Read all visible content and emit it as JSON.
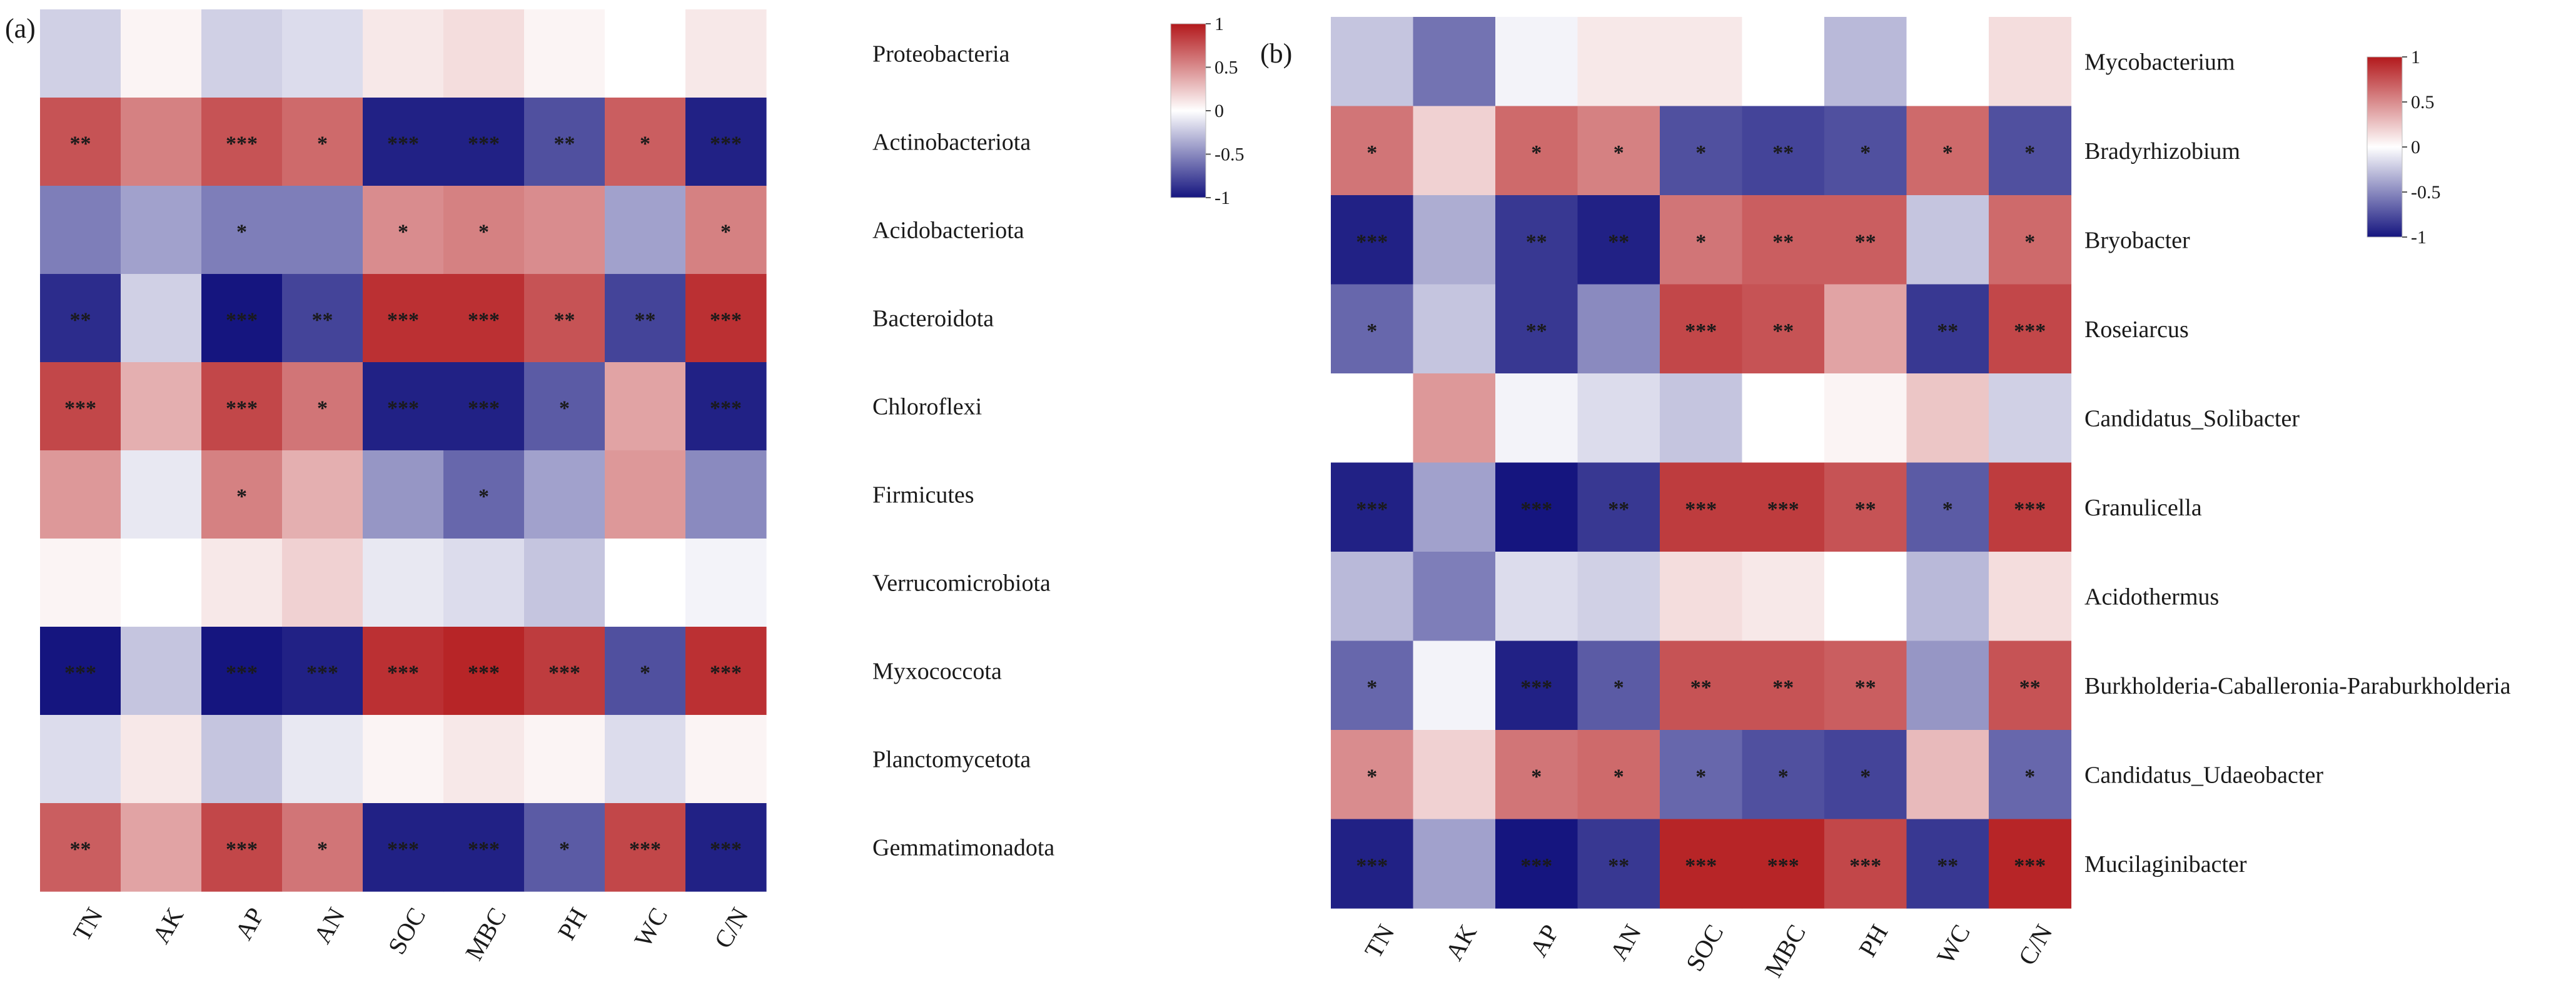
{
  "chart_data": [
    {
      "type": "heatmap",
      "panel_label": "(a)",
      "columns": [
        "TN",
        "AK",
        "AP",
        "AN",
        "SOC",
        "MBC",
        "PH",
        "WC",
        "C/N"
      ],
      "rows": [
        "Proteobacteria",
        "Actinobacteriota",
        "Acidobacteriota",
        "Bacteroidota",
        "Chloroflexi",
        "Firmicutes",
        "Verrucomicrobiota",
        "Myxococcota",
        "Planctomycetota",
        "Gemmatimonadota"
      ],
      "values": [
        [
          -0.2,
          0.05,
          -0.2,
          -0.15,
          0.1,
          0.15,
          0.05,
          0.0,
          0.1
        ],
        [
          0.75,
          0.55,
          0.75,
          0.65,
          -0.95,
          -0.95,
          -0.75,
          0.7,
          -0.95
        ],
        [
          -0.55,
          -0.4,
          -0.55,
          -0.55,
          0.5,
          0.55,
          0.5,
          -0.4,
          0.55
        ],
        [
          -0.9,
          -0.2,
          -1.0,
          -0.8,
          0.9,
          0.9,
          0.75,
          -0.8,
          0.9
        ],
        [
          0.8,
          0.35,
          0.8,
          0.6,
          -0.95,
          -0.95,
          -0.7,
          0.4,
          -0.95
        ],
        [
          0.45,
          -0.1,
          0.55,
          0.35,
          -0.45,
          -0.65,
          -0.4,
          0.45,
          -0.5
        ],
        [
          0.05,
          0.0,
          0.1,
          0.2,
          -0.1,
          -0.15,
          -0.25,
          0.0,
          -0.05
        ],
        [
          -1.0,
          -0.25,
          -1.0,
          -0.95,
          0.9,
          0.95,
          0.85,
          -0.75,
          0.9
        ],
        [
          -0.15,
          0.1,
          -0.25,
          -0.1,
          0.05,
          0.1,
          0.05,
          -0.15,
          0.05
        ],
        [
          0.7,
          0.4,
          0.8,
          0.6,
          -0.95,
          -0.95,
          -0.7,
          0.8,
          -0.95
        ]
      ],
      "significance": [
        [
          "",
          "",
          "",
          "",
          "",
          "",
          "",
          "",
          ""
        ],
        [
          "**",
          "",
          "***",
          "*",
          "***",
          "***",
          "**",
          "*",
          "***"
        ],
        [
          "",
          "",
          "*",
          "",
          "*",
          "*",
          "",
          "",
          "*"
        ],
        [
          "**",
          "",
          "***",
          "**",
          "***",
          "***",
          "**",
          "**",
          "***"
        ],
        [
          "***",
          "",
          "***",
          "*",
          "***",
          "***",
          "*",
          "",
          "***"
        ],
        [
          "",
          "",
          "*",
          "",
          "",
          "*",
          "",
          "",
          ""
        ],
        [
          "",
          "",
          "",
          "",
          "",
          "",
          "",
          "",
          ""
        ],
        [
          "***",
          "",
          "***",
          "***",
          "***",
          "***",
          "***",
          "*",
          "***"
        ],
        [
          "",
          "",
          "",
          "",
          "",
          "",
          "",
          "",
          ""
        ],
        [
          "**",
          "",
          "***",
          "*",
          "***",
          "***",
          "*",
          "***",
          "***"
        ]
      ],
      "color_scale": {
        "min": -1,
        "max": 1,
        "low": "#15157f",
        "mid": "#ffffff",
        "high": "#b3191c"
      },
      "legend": {
        "ticks": [
          "1",
          "0.5",
          "0",
          "-0.5",
          "-1"
        ],
        "values": [
          1,
          0.5,
          0,
          -0.5,
          -1
        ]
      }
    },
    {
      "type": "heatmap",
      "panel_label": "(b)",
      "columns": [
        "TN",
        "AK",
        "AP",
        "AN",
        "SOC",
        "MBC",
        "PH",
        "WC",
        "C/N"
      ],
      "rows": [
        "Mycobacterium",
        "Bradyrhizobium",
        "Bryobacter",
        "Roseiarcus",
        "Candidatus_Solibacter",
        "Granulicella",
        "Acidothermus",
        "Burkholderia-Caballeronia-Paraburkholderia",
        "Candidatus_Udaeobacter",
        "Mucilaginibacter"
      ],
      "values": [
        [
          -0.25,
          -0.6,
          -0.05,
          0.1,
          0.1,
          0.0,
          -0.3,
          0.0,
          0.15
        ],
        [
          0.6,
          0.2,
          0.65,
          0.55,
          -0.75,
          -0.8,
          -0.75,
          0.65,
          -0.75
        ],
        [
          -0.95,
          -0.35,
          -0.85,
          -0.95,
          0.6,
          0.7,
          0.7,
          -0.25,
          0.65
        ],
        [
          -0.65,
          -0.25,
          -0.85,
          -0.5,
          0.8,
          0.75,
          0.4,
          -0.85,
          0.8
        ],
        [
          0.0,
          0.45,
          -0.05,
          -0.15,
          -0.25,
          0.0,
          0.05,
          0.25,
          -0.2
        ],
        [
          -0.95,
          -0.4,
          -1.0,
          -0.85,
          0.85,
          0.85,
          0.75,
          -0.7,
          0.85
        ],
        [
          -0.3,
          -0.55,
          -0.15,
          -0.2,
          0.15,
          0.1,
          0.0,
          -0.3,
          0.15
        ],
        [
          -0.65,
          -0.05,
          -0.95,
          -0.7,
          0.75,
          0.75,
          0.7,
          -0.45,
          0.75
        ],
        [
          0.5,
          0.2,
          0.6,
          0.65,
          -0.65,
          -0.75,
          -0.8,
          0.3,
          -0.65
        ],
        [
          -0.95,
          -0.4,
          -1.0,
          -0.85,
          0.95,
          0.95,
          0.8,
          -0.85,
          0.95
        ]
      ],
      "significance": [
        [
          "",
          "",
          "",
          "",
          "",
          "",
          "",
          "",
          ""
        ],
        [
          "*",
          "",
          "*",
          "*",
          "*",
          "**",
          "*",
          "*",
          "*"
        ],
        [
          "***",
          "",
          "**",
          "**",
          "*",
          "**",
          "**",
          "",
          "*"
        ],
        [
          "*",
          "",
          "**",
          "",
          "***",
          "**",
          "",
          "**",
          "***"
        ],
        [
          "",
          "",
          "",
          "",
          "",
          "",
          "",
          "",
          ""
        ],
        [
          "***",
          "",
          "***",
          "**",
          "***",
          "***",
          "**",
          "*",
          "***"
        ],
        [
          "",
          "",
          "",
          "",
          "",
          "",
          "",
          "",
          ""
        ],
        [
          "*",
          "",
          "***",
          "*",
          "**",
          "**",
          "**",
          "",
          "**"
        ],
        [
          "*",
          "",
          "*",
          "*",
          "*",
          "*",
          "*",
          "",
          "*"
        ],
        [
          "***",
          "",
          "***",
          "**",
          "***",
          "***",
          "***",
          "**",
          "***"
        ]
      ],
      "color_scale": {
        "min": -1,
        "max": 1,
        "low": "#15157f",
        "mid": "#ffffff",
        "high": "#b3191c"
      },
      "legend": {
        "ticks": [
          "1",
          "0.5",
          "0",
          "-0.5",
          "-1"
        ],
        "values": [
          1,
          0.5,
          0,
          -0.5,
          -1
        ]
      }
    }
  ]
}
